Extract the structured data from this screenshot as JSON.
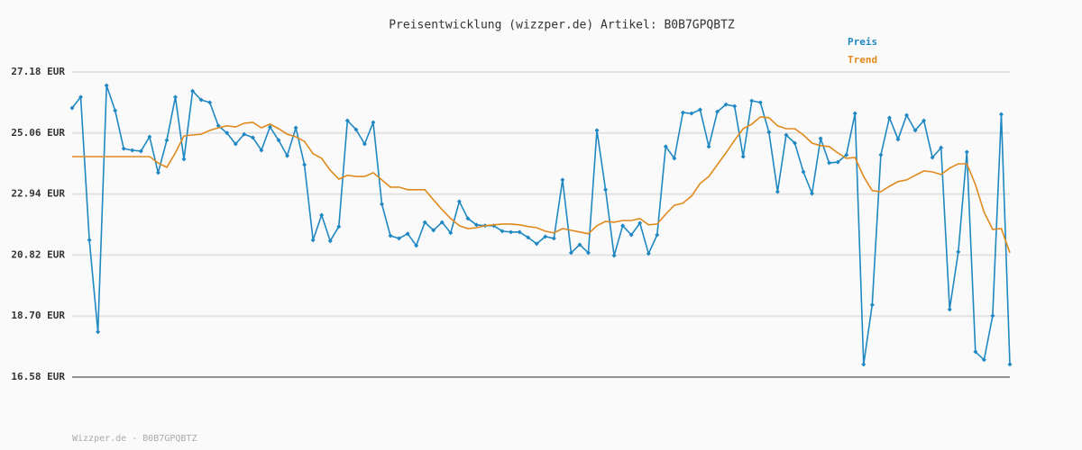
{
  "chart_data": {
    "type": "line",
    "title": "Preisentwicklung (wizzper.de) Artikel: B0B7GPQBTZ",
    "footer": "Wizzper.de - B0B7GPQBTZ",
    "ylim": [
      16.58,
      27.18
    ],
    "yticks": [
      {
        "value": 16.58,
        "label": "16.58 EUR"
      },
      {
        "value": 18.7,
        "label": "18.70 EUR"
      },
      {
        "value": 20.82,
        "label": "20.82 EUR"
      },
      {
        "value": 22.94,
        "label": "22.94 EUR"
      },
      {
        "value": 25.06,
        "label": "25.06 EUR"
      },
      {
        "value": 27.18,
        "label": "27.18 EUR"
      }
    ],
    "grid": true,
    "series": [
      {
        "name": "Preis",
        "color": "#1f88c2",
        "markers": true,
        "values": [
          25.93,
          26.31,
          21.34,
          18.15,
          26.71,
          25.84,
          24.52,
          24.46,
          24.43,
          24.93,
          23.68,
          24.81,
          26.31,
          24.15,
          26.52,
          26.21,
          26.12,
          25.31,
          25.06,
          24.68,
          25.02,
          24.9,
          24.46,
          25.27,
          24.81,
          24.27,
          25.24,
          23.96,
          21.34,
          22.21,
          21.31,
          21.81,
          25.49,
          25.18,
          24.68,
          25.43,
          22.59,
          21.49,
          21.4,
          21.56,
          21.15,
          21.96,
          21.68,
          21.96,
          21.59,
          22.68,
          22.09,
          21.87,
          21.84,
          21.84,
          21.65,
          21.62,
          21.62,
          21.43,
          21.21,
          21.46,
          21.4,
          23.43,
          20.9,
          21.18,
          20.9,
          25.15,
          23.09,
          20.8,
          21.84,
          21.52,
          21.93,
          20.87,
          21.52,
          24.59,
          24.18,
          25.77,
          25.74,
          25.87,
          24.59,
          25.8,
          26.05,
          25.99,
          24.24,
          26.18,
          26.12,
          25.09,
          23.02,
          24.99,
          24.71,
          23.71,
          22.96,
          24.87,
          24.02,
          24.05,
          24.3,
          25.74,
          17.02,
          19.09,
          24.3,
          25.59,
          24.84,
          25.68,
          25.15,
          25.49,
          24.21,
          24.55,
          18.93,
          20.93,
          24.4,
          17.46,
          17.18,
          18.71,
          25.71,
          17.02
        ]
      },
      {
        "name": "Trend",
        "color": "#e08a1e",
        "markers": false,
        "values": [
          24.24,
          24.24,
          24.24,
          24.24,
          24.24,
          24.24,
          24.24,
          24.24,
          24.24,
          24.24,
          24.02,
          23.87,
          24.37,
          24.96,
          24.99,
          25.02,
          25.15,
          25.24,
          25.31,
          25.27,
          25.4,
          25.43,
          25.24,
          25.37,
          25.21,
          25.02,
          24.93,
          24.77,
          24.34,
          24.18,
          23.77,
          23.46,
          23.59,
          23.55,
          23.55,
          23.68,
          23.43,
          23.18,
          23.18,
          23.09,
          23.09,
          23.09,
          22.74,
          22.4,
          22.09,
          21.84,
          21.74,
          21.77,
          21.84,
          21.87,
          21.9,
          21.9,
          21.87,
          21.81,
          21.77,
          21.65,
          21.59,
          21.74,
          21.68,
          21.62,
          21.56,
          21.84,
          21.99,
          21.96,
          22.02,
          22.02,
          22.09,
          21.87,
          21.9,
          22.24,
          22.55,
          22.62,
          22.87,
          23.31,
          23.55,
          23.96,
          24.37,
          24.81,
          25.21,
          25.37,
          25.62,
          25.59,
          25.31,
          25.21,
          25.21,
          24.99,
          24.71,
          24.62,
          24.59,
          24.37,
          24.18,
          24.21,
          23.55,
          23.06,
          23.02,
          23.21,
          23.37,
          23.43,
          23.59,
          23.74,
          23.71,
          23.62,
          23.84,
          23.99,
          23.99,
          23.27,
          22.31,
          21.71,
          21.74,
          20.9
        ]
      }
    ]
  }
}
